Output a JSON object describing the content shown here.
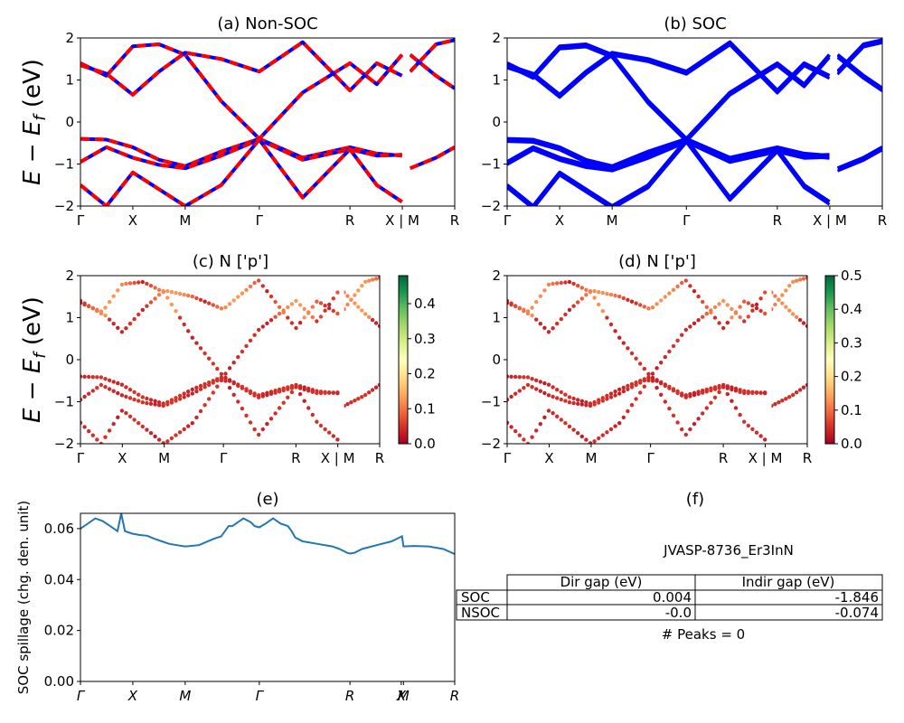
{
  "chart_data": [
    {
      "id": "a",
      "type": "line",
      "title": "(a) Non-SOC",
      "ylabel_parts": [
        "E",
        " − ",
        "E",
        "f",
        " (eV)"
      ],
      "ylim": [
        -2,
        2
      ],
      "yticks": [
        -2,
        -1,
        0,
        1,
        2
      ],
      "kpath": [
        "Γ",
        "X",
        "M",
        "Γ",
        "R",
        "X | M",
        "R"
      ],
      "kpos": [
        0,
        0.707,
        1.414,
        2.414,
        3.638,
        4.345,
        5.052
      ],
      "gap_after_index": 5,
      "colors": [
        "#ff0000",
        "#0000ff"
      ],
      "series": [
        {
          "x": [
            0,
            0.35,
            0.707,
            1.06,
            1.414,
            1.9,
            2.414,
            3.0,
            3.638,
            4.0,
            4.34
          ],
          "y": [
            -0.4,
            -0.42,
            -0.6,
            -0.9,
            -1.05,
            -0.7,
            -0.4,
            -0.85,
            -0.6,
            -0.75,
            -0.8
          ]
        },
        {
          "x": [
            0,
            0.35,
            0.707,
            1.06,
            1.414,
            1.9,
            2.414,
            3.0,
            3.638,
            4.0,
            4.34
          ],
          "y": [
            -0.95,
            -0.6,
            -0.85,
            -1.02,
            -1.1,
            -0.8,
            -0.42,
            -0.9,
            -0.65,
            -0.8,
            -0.78
          ]
        },
        {
          "x": [
            0,
            0.35,
            0.707,
            1.06,
            1.414,
            1.9,
            2.414,
            3.0,
            3.638,
            4.0,
            4.34
          ],
          "y": [
            1.4,
            1.1,
            1.8,
            1.85,
            1.6,
            0.5,
            -0.4,
            0.7,
            1.4,
            0.9,
            1.6
          ]
        },
        {
          "x": [
            0,
            0.35,
            0.707,
            1.06,
            1.414,
            1.9,
            2.414,
            3.0,
            3.638,
            4.0,
            4.34
          ],
          "y": [
            1.35,
            1.15,
            0.65,
            1.2,
            1.65,
            1.5,
            1.2,
            1.9,
            0.75,
            1.4,
            1.1
          ]
        },
        {
          "x": [
            0,
            0.35,
            0.707,
            1.06,
            1.414,
            1.9,
            2.414,
            3.0,
            3.638,
            4.0,
            4.34
          ],
          "y": [
            -1.5,
            -2.0,
            -1.2,
            -1.6,
            -2.0,
            -1.5,
            -0.42,
            -1.8,
            -0.65,
            -1.5,
            -1.9
          ]
        },
        {
          "x": [
            4.45,
            4.8,
            5.052
          ],
          "y": [
            1.6,
            1.1,
            0.8
          ]
        },
        {
          "x": [
            4.45,
            4.8,
            5.052
          ],
          "y": [
            1.2,
            1.85,
            1.95
          ]
        },
        {
          "x": [
            4.45,
            4.8,
            5.052
          ],
          "y": [
            -1.1,
            -0.85,
            -0.6
          ]
        }
      ]
    },
    {
      "id": "b",
      "type": "line",
      "title": "(b) SOC",
      "ylim": [
        -2,
        2
      ],
      "yticks": [
        -2,
        -1,
        0,
        1,
        2
      ],
      "kpath": [
        "Γ",
        "X",
        "M",
        "Γ",
        "R",
        "X | M",
        "R"
      ],
      "kpos": [
        0,
        0.707,
        1.414,
        2.414,
        3.638,
        4.345,
        5.052
      ],
      "gap_after_index": 5,
      "colors": [
        "#0000ff"
      ],
      "series": [
        {
          "x": [
            0,
            0.35,
            0.707,
            1.06,
            1.414,
            1.9,
            2.414,
            3.0,
            3.638,
            4.0,
            4.34
          ],
          "y": [
            -0.4,
            -0.42,
            -0.6,
            -0.9,
            -1.05,
            -0.7,
            -0.4,
            -0.85,
            -0.6,
            -0.75,
            -0.8
          ]
        },
        {
          "x": [
            0,
            0.35,
            0.707,
            1.06,
            1.414,
            1.9,
            2.414,
            3.0,
            3.638,
            4.0,
            4.34
          ],
          "y": [
            -0.95,
            -0.6,
            -0.85,
            -1.02,
            -1.1,
            -0.8,
            -0.42,
            -0.9,
            -0.65,
            -0.8,
            -0.78
          ]
        },
        {
          "x": [
            0,
            0.35,
            0.707,
            1.06,
            1.414,
            1.9,
            2.414,
            3.0,
            3.638,
            4.0,
            4.34
          ],
          "y": [
            1.4,
            1.1,
            1.8,
            1.85,
            1.6,
            0.5,
            -0.4,
            0.7,
            1.4,
            0.9,
            1.6
          ]
        },
        {
          "x": [
            0,
            0.35,
            0.707,
            1.06,
            1.414,
            1.9,
            2.414,
            3.0,
            3.638,
            4.0,
            4.34
          ],
          "y": [
            1.35,
            1.15,
            0.65,
            1.2,
            1.65,
            1.5,
            1.2,
            1.9,
            0.75,
            1.4,
            1.1
          ]
        },
        {
          "x": [
            0,
            0.35,
            0.707,
            1.06,
            1.414,
            1.9,
            2.414,
            3.0,
            3.638,
            4.0,
            4.34
          ],
          "y": [
            -1.5,
            -2.0,
            -1.2,
            -1.6,
            -2.0,
            -1.5,
            -0.42,
            -1.8,
            -0.65,
            -1.5,
            -1.9
          ]
        },
        {
          "x": [
            4.45,
            4.8,
            5.052
          ],
          "y": [
            1.6,
            1.1,
            0.8
          ]
        },
        {
          "x": [
            4.45,
            4.8,
            5.052
          ],
          "y": [
            1.2,
            1.85,
            1.95
          ]
        },
        {
          "x": [
            4.45,
            4.8,
            5.052
          ],
          "y": [
            -1.1,
            -0.85,
            -0.6
          ]
        }
      ]
    },
    {
      "id": "c",
      "type": "scatter",
      "title": "(c)  N ['p']",
      "ylabel_parts": [
        "E",
        " − ",
        "E",
        "f",
        " (eV)"
      ],
      "ylim": [
        -2,
        2
      ],
      "yticks": [
        -2,
        -1,
        0,
        1,
        2
      ],
      "kpath": [
        "Γ",
        "X",
        "M",
        "Γ",
        "R",
        "X | M",
        "R"
      ],
      "kpos": [
        0,
        0.707,
        1.414,
        2.414,
        3.638,
        4.345,
        5.052
      ],
      "gap_after_index": 5,
      "colorbar": {
        "min": 0.0,
        "max": 0.48,
        "ticks": [
          "0.0",
          "0.1",
          "0.2",
          "0.3",
          "0.4"
        ],
        "tick_values": [
          0.0,
          0.1,
          0.2,
          0.3,
          0.4
        ]
      },
      "point_weight": 0.03
    },
    {
      "id": "d",
      "type": "scatter",
      "title": "(d) N ['p']",
      "ylim": [
        -2,
        2
      ],
      "yticks": [
        -2,
        -1,
        0,
        1,
        2
      ],
      "kpath": [
        "Γ",
        "X",
        "M",
        "Γ",
        "R",
        "X | M",
        "R"
      ],
      "kpos": [
        0,
        0.707,
        1.414,
        2.414,
        3.638,
        4.345,
        5.052
      ],
      "gap_after_index": 5,
      "colorbar": {
        "min": 0.0,
        "max": 0.5,
        "ticks": [
          "0.0",
          "0.1",
          "0.2",
          "0.3",
          "0.4",
          "0.5"
        ],
        "tick_values": [
          0.0,
          0.1,
          0.2,
          0.3,
          0.4,
          0.5
        ]
      },
      "point_weight": 0.03
    },
    {
      "id": "e",
      "type": "line",
      "title": "(e)",
      "ylabel": "SOC spillage (chg. den. unit)",
      "ylim": [
        0,
        0.066
      ],
      "yticks": [
        "0.00",
        "0.02",
        "0.04",
        "0.06"
      ],
      "ytick_values": [
        0.0,
        0.02,
        0.04,
        0.06
      ],
      "kpath": [
        "Γ",
        "X",
        "M",
        "Γ",
        "R",
        "X",
        "M",
        "R"
      ],
      "kpos": [
        0,
        0.707,
        1.414,
        2.414,
        3.638,
        4.33,
        4.36,
        5.052
      ],
      "color": "#1f77b4",
      "x": [
        0,
        0.1,
        0.2,
        0.3,
        0.4,
        0.45,
        0.5,
        0.55,
        0.6,
        0.7,
        0.8,
        0.9,
        1.0,
        1.1,
        1.2,
        1.3,
        1.414,
        1.6,
        1.8,
        1.9,
        2.0,
        2.05,
        2.1,
        2.2,
        2.3,
        2.35,
        2.414,
        2.5,
        2.6,
        2.7,
        2.8,
        2.85,
        2.9,
        3.0,
        3.2,
        3.4,
        3.5,
        3.6,
        3.638,
        3.7,
        3.8,
        4.0,
        4.2,
        4.34,
        4.36,
        4.5,
        4.7,
        4.9,
        5.052
      ],
      "y": [
        0.06,
        0.062,
        0.064,
        0.063,
        0.061,
        0.06,
        0.059,
        0.066,
        0.059,
        0.058,
        0.0575,
        0.0572,
        0.056,
        0.055,
        0.054,
        0.0535,
        0.053,
        0.0535,
        0.056,
        0.057,
        0.061,
        0.061,
        0.062,
        0.064,
        0.0625,
        0.061,
        0.0605,
        0.062,
        0.064,
        0.062,
        0.061,
        0.059,
        0.0565,
        0.055,
        0.054,
        0.053,
        0.052,
        0.0505,
        0.0502,
        0.0505,
        0.052,
        0.0535,
        0.055,
        0.057,
        0.053,
        0.0532,
        0.053,
        0.052,
        0.05
      ]
    }
  ],
  "table_panel": {
    "title": "(f)",
    "name": "JVASP-8736_Er3InN",
    "headers": [
      "",
      "Dir gap (eV)",
      "Indir gap (eV)"
    ],
    "rows": [
      [
        "SOC",
        "0.004",
        "-1.846"
      ],
      [
        "NSOC",
        "-0.0",
        "-0.074"
      ]
    ],
    "peaks": "# Peaks = 0"
  }
}
